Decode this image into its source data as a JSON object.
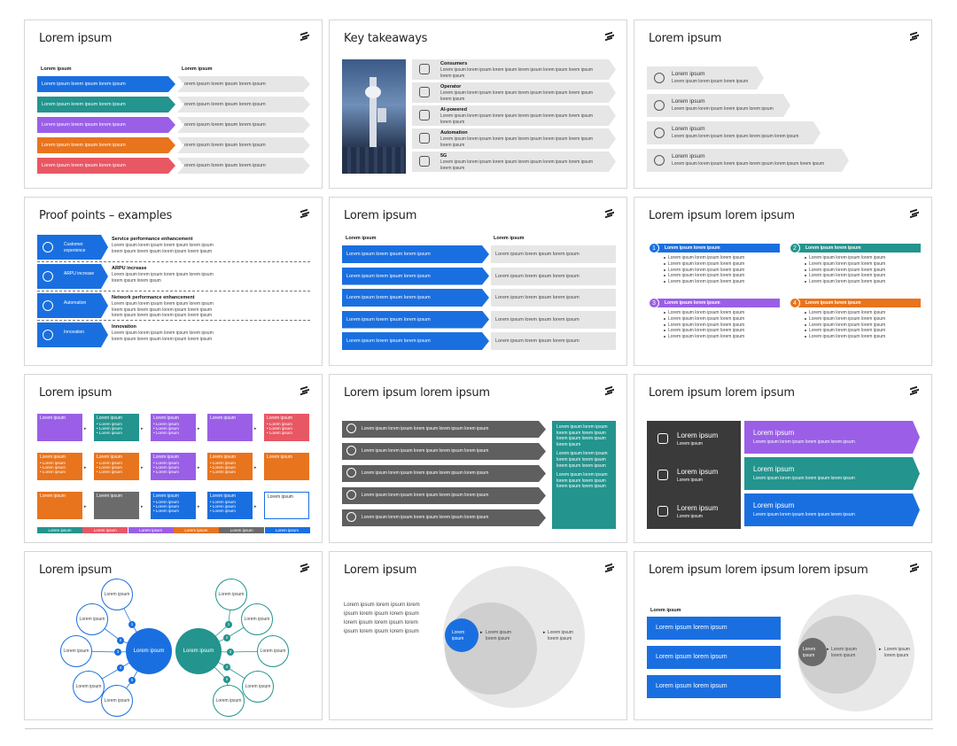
{
  "colors": {
    "blue": "#1a6fe0",
    "teal": "#23948e",
    "purple": "#9a5fe6",
    "orange": "#e8741e",
    "red": "#e85764",
    "grey": "#6b6b6b",
    "dark": "#3a3a3a"
  },
  "s1": {
    "title": "Lorem ipsum",
    "h1": "Lorem ipsum",
    "h2": "Lorem ipsum",
    "left": "Lorem ipsum lorem ipsum lorem ipsum",
    "right": "Lorem ipsum lorem ipsum lorem ipsum"
  },
  "s2": {
    "title": "Key takeaways",
    "items": [
      {
        "h": "Consumers",
        "t": "Lorem ipsum lorem ipsum lorem ipsum lorem ipsum lorem ipsum lorem ipsum lorem ipsum",
        "icon": "people-icon"
      },
      {
        "h": "Operator",
        "t": "Lorem ipsum lorem ipsum lorem ipsum lorem ipsum lorem ipsum lorem ipsum lorem ipsum",
        "icon": "antenna-icon"
      },
      {
        "h": "AI-powered",
        "t": "Lorem ipsum lorem ipsum lorem ipsum lorem ipsum lorem ipsum lorem ipsum lorem ipsum",
        "icon": "chip-icon"
      },
      {
        "h": "Automation",
        "t": "Lorem ipsum lorem ipsum lorem ipsum lorem ipsum lorem ipsum lorem ipsum lorem ipsum",
        "icon": "robot-icon"
      },
      {
        "h": "5G",
        "t": "Lorem ipsum lorem ipsum lorem ipsum lorem ipsum lorem ipsum lorem ipsum lorem ipsum",
        "icon": "network-icon"
      }
    ]
  },
  "s3": {
    "title": "Lorem ipsum",
    "items": [
      {
        "h": "Lorem ipsum",
        "t": "Lorem ipsum lorem ipsum lorem ipsum"
      },
      {
        "h": "Lorem ipsum",
        "t": "Lorem ipsum lorem ipsum lorem ipsum lorem ipsum"
      },
      {
        "h": "Lorem ipsum",
        "t": "Lorem ipsum lorem ipsum lorem ipsum lorem ipsum lorem ipsum"
      },
      {
        "h": "Lorem ipsum",
        "t": "Lorem ipsum lorem ipsum lorem ipsum lorem ipsum lorem ipsum lorem ipsum"
      }
    ]
  },
  "s4": {
    "title": "Proof points – examples",
    "items": [
      {
        "label": "Customer experience",
        "h": "Service performance enhancement",
        "t": "Lorem ipsum lorem ipsum lorem ipsum lorem ipsum lorem ipsum lorem ipsum lorem ipsum lorem ipsum"
      },
      {
        "label": "ARPU increase",
        "h": "ARPU increase",
        "t": "Lorem ipsum lorem ipsum lorem ipsum lorem ipsum lorem ipsum lorem ipsum"
      },
      {
        "label": "Automation",
        "h": "Network performance enhancement",
        "t": "Lorem ipsum lorem ipsum lorem ipsum lorem ipsum lorem ipsum lorem ipsum lorem ipsum lorem ipsum lorem ipsum lorem ipsum lorem ipsum lorem ipsum"
      },
      {
        "label": "Innovation",
        "h": "Innovation",
        "t": "Lorem ipsum lorem ipsum lorem ipsum lorem ipsum lorem ipsum lorem ipsum lorem ipsum lorem ipsum"
      }
    ]
  },
  "s5": {
    "title": "Lorem ipsum",
    "h1": "Lorem ipsum",
    "h2": "Lorem ipsum",
    "left": "Lorem ipsum lorem ipsum lorem ipsum",
    "right": "Lorem ipsum lorem ipsum lorem ipsum"
  },
  "s6": {
    "title": "Lorem ipsum lorem ipsum",
    "items": [
      {
        "n": "1",
        "h": "Lorem ipsum lorem ipsum"
      },
      {
        "n": "2",
        "h": "Lorem ipsum lorem ipsum"
      },
      {
        "n": "3",
        "h": "Lorem ipsum lorem ipsum"
      },
      {
        "n": "4",
        "h": "Lorem ipsum lorem ipsum"
      }
    ],
    "bullet": "Lorem ipsum lorem ipsum lorem ipsum"
  },
  "s7": {
    "title": "Lorem ipsum",
    "box": "Lorem ipsum",
    "bl": "• Lorem ipsum",
    "legend": "Lorem ipsum"
  },
  "s8": {
    "title": "Lorem ipsum lorem ipsum",
    "row": "Lorem ipsum lorem ipsum lorem ipsum lorem ipsum lorem ipsum",
    "side": [
      "Lorem ipsum lorem ipsum lorem ipsum lorem ipsum lorem ipsum lorem ipsum lorem ipsum",
      "Lorem ipsum lorem ipsum lorem ipsum lorem ipsum lorem ipsum lorem ipsum",
      "Lorem ipsum lorem ipsum lorem ipsum lorem ipsum lorem ipsum lorem ipsum"
    ]
  },
  "s9": {
    "title": "Lorem ipsum lorem ipsum",
    "dh": "Lorem ipsum",
    "ds": "Lorem ipsum",
    "ah": "Lorem ipsum",
    "as": "Lorem ipsum lorem ipsum lorem ipsum lorem ipsum"
  },
  "s10": {
    "title": "Lorem ipsum",
    "center": "Lorem ipsum",
    "node": "Lorem ipsum"
  },
  "s11": {
    "title": "Lorem ipsum",
    "text": "Lorem ipsum lorem ipsum lorem ipsum lorem ipsum lorem ipsum lorem ipsum lorem ipsum lorem ipsum lorem ipsum lorem ipsum",
    "c1": "Lorem ipsum",
    "c2": "Lorem ipsum lorem ipsum",
    "c3": "Lorem ipsum lorem ipsum"
  },
  "s12": {
    "title": "Lorem ipsum lorem ipsum lorem ipsum",
    "h": "Lorem ipsum",
    "box": "Lorem ipsum lorem ipsum",
    "c1": "Lorem ipsum",
    "c2": "Lorem ipsum lorem ipsum",
    "c3": "Lorem ipsum lorem ipsum"
  }
}
